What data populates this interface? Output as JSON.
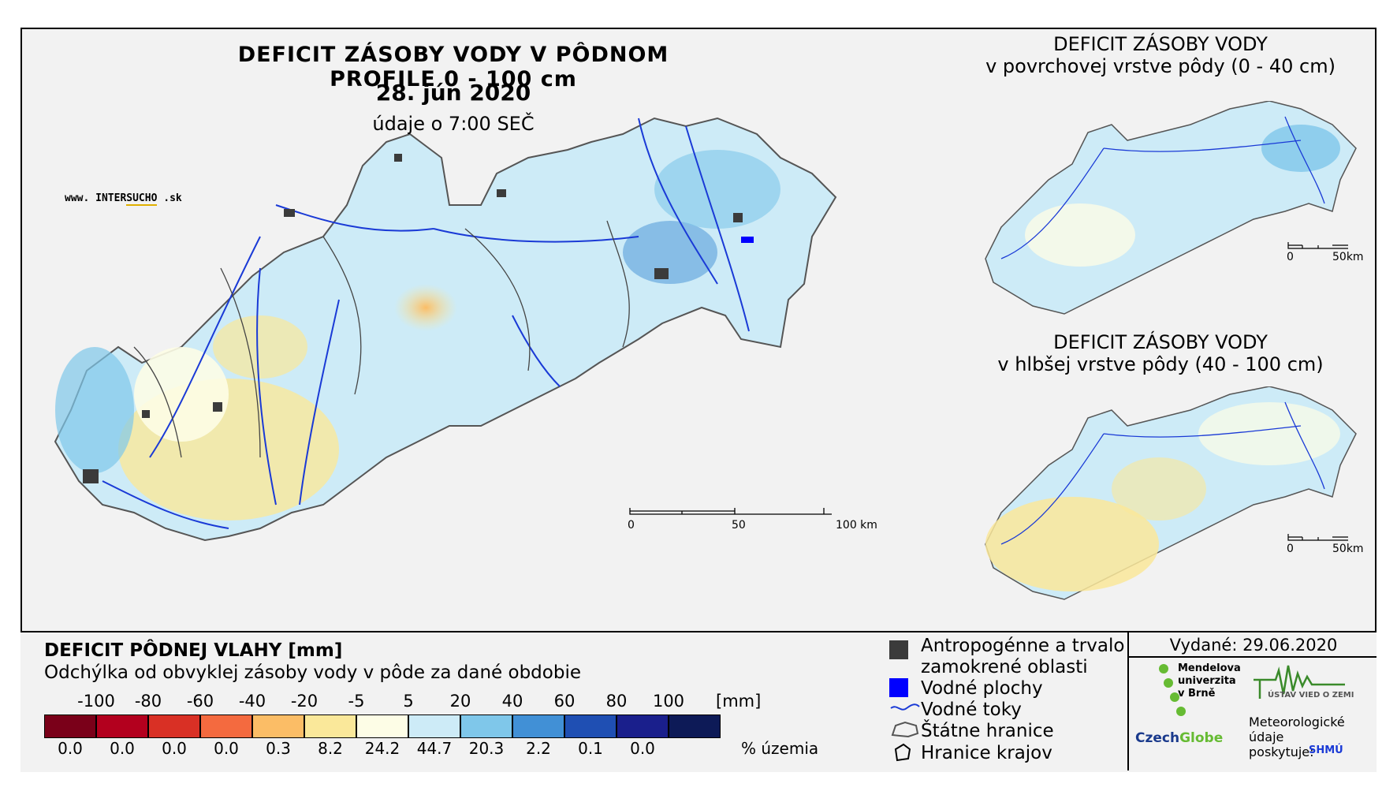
{
  "title": "DEFICIT ZÁSOBY VODY V PÔDNOM PROFILE 0 - 100 cm",
  "date": "28. jún 2020",
  "time": "údaje o 7:00 SEČ",
  "website": {
    "prefix": "www.",
    "name_a": "INTER",
    "name_b": "SUCHO",
    "suffix": ".sk"
  },
  "inset_top": {
    "line1": "DEFICIT ZÁSOBY VODY",
    "line2": "v povrchovej vrstve pôdy (0 - 40 cm)",
    "scale_0": "0",
    "scale_end": "50km"
  },
  "inset_bottom": {
    "line1": "DEFICIT ZÁSOBY VODY",
    "line2": "v hlbšej vrstve pôdy (40 - 100 cm)",
    "scale_0": "0",
    "scale_end": "50km"
  },
  "main_scale": {
    "s0": "0",
    "s50": "50",
    "s100": "100 km"
  },
  "legend": {
    "title": "DEFICIT PÔDNEJ VLAHY [mm]",
    "subtitle": "Odchýlka od obvyklej zásoby vody v pôde za dané obdobie",
    "ticks": [
      "-100",
      "-80",
      "-60",
      "-40",
      "-20",
      "-5",
      "5",
      "20",
      "40",
      "60",
      "80",
      "100"
    ],
    "unit": "[mm]",
    "colors": [
      "#7a0019",
      "#b3001e",
      "#d93025",
      "#f46a3f",
      "#fbbd66",
      "#fae89a",
      "#fdfde6",
      "#cdebf7",
      "#7fc7ea",
      "#4190d6",
      "#1f4fb3",
      "#1a1f8c",
      "#0d1a57"
    ],
    "percentages": [
      "0.0",
      "0.0",
      "0.0",
      "0.0",
      "0.3",
      "8.2",
      "24.2",
      "44.7",
      "20.3",
      "2.2",
      "0.1",
      "0.0"
    ],
    "percent_label": "% územia"
  },
  "map_legend": {
    "urban": "Antropogénne a trvalo",
    "urban2": "zamokrené oblasti",
    "water": "Vodné plochy",
    "rivers": "Vodné toky",
    "border": "Štátne hranice",
    "regions": "Hranice krajov"
  },
  "issued": "Vydané: 29.06.2020",
  "orgs": {
    "mendel1": "Mendelova",
    "mendel2": "univerzita",
    "mendel3": "v Brně",
    "czechglobe_a": "Czech",
    "czechglobe_b": "Globe",
    "uvz": "ÚSTAV VIED O ZEMI",
    "meteo1": "Meteorologické",
    "meteo2": "údaje",
    "meteo3": "poskytuje:",
    "shmu": "SHMÚ"
  }
}
